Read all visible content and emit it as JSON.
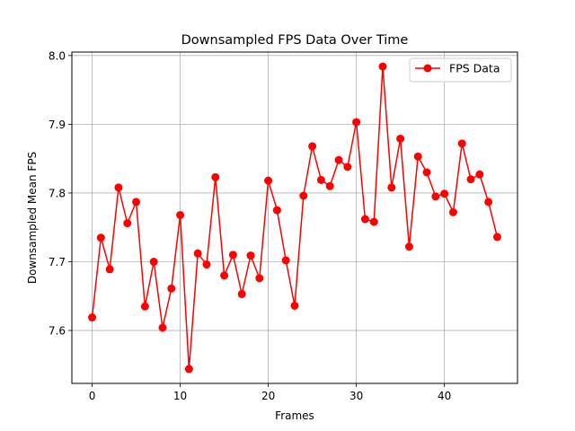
{
  "chart_data": {
    "type": "line",
    "title": "Downsampled FPS Data Over Time",
    "xlabel": "Frames",
    "ylabel": "Downsampled Mean FPS",
    "xlim": [
      -2.3,
      48.3
    ],
    "ylim": [
      7.523,
      8.005
    ],
    "xticks": [
      0,
      10,
      20,
      30,
      40
    ],
    "yticks": [
      7.6,
      7.7,
      7.8,
      7.9,
      8.0
    ],
    "xtick_labels": [
      "0",
      "10",
      "20",
      "30",
      "40"
    ],
    "ytick_labels": [
      "7.6",
      "7.7",
      "7.8",
      "7.9",
      "8.0"
    ],
    "grid": true,
    "legend_position": "top-right",
    "series": [
      {
        "name": "FPS Data",
        "color": "#ff0000",
        "marker": "circle",
        "x": [
          0,
          1,
          2,
          3,
          4,
          5,
          6,
          7,
          8,
          9,
          10,
          11,
          12,
          13,
          14,
          15,
          16,
          17,
          18,
          19,
          20,
          21,
          22,
          23,
          24,
          25,
          26,
          27,
          28,
          29,
          30,
          31,
          32,
          33,
          34,
          35,
          36,
          37,
          38,
          39,
          40,
          41,
          42,
          43,
          44,
          45,
          46
        ],
        "values": [
          7.619,
          7.735,
          7.689,
          7.808,
          7.756,
          7.787,
          7.635,
          7.7,
          7.604,
          7.661,
          7.768,
          7.544,
          7.712,
          7.696,
          7.823,
          7.68,
          7.71,
          7.653,
          7.709,
          7.676,
          7.818,
          7.775,
          7.702,
          7.636,
          7.796,
          7.868,
          7.819,
          7.81,
          7.848,
          7.838,
          7.903,
          7.762,
          7.758,
          7.984,
          7.808,
          7.879,
          7.722,
          7.853,
          7.83,
          7.795,
          7.799,
          7.772,
          7.872,
          7.82,
          7.827,
          7.787,
          7.736
        ]
      }
    ]
  }
}
